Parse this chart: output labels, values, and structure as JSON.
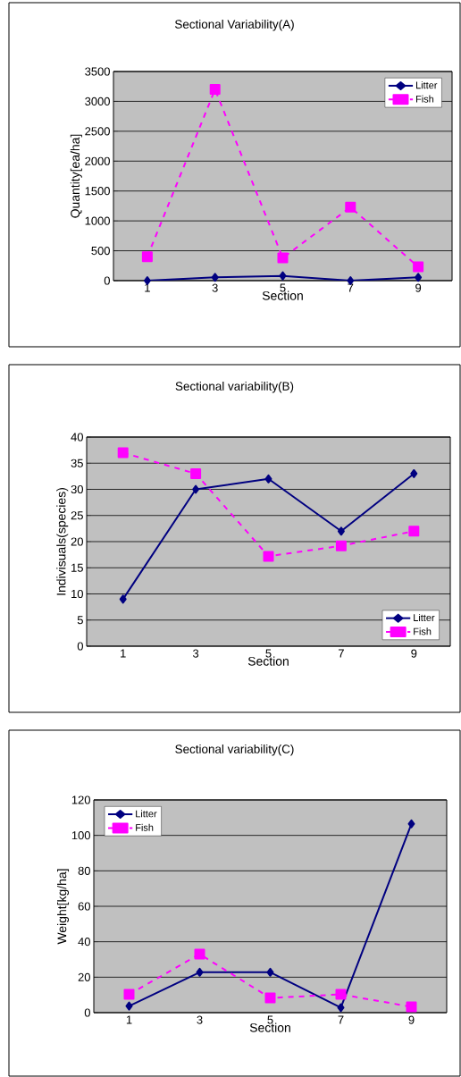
{
  "chart_data": [
    {
      "type": "line",
      "title": "Sectional Variability(A)",
      "xlabel": "Section",
      "ylabel": "Quantity[ea/ha]",
      "categories": [
        "1",
        "3",
        "5",
        "7",
        "9"
      ],
      "series": [
        {
          "name": "Litter",
          "color": "#000080",
          "values": [
            0,
            55,
            80,
            0,
            55
          ],
          "marker": "diamond",
          "line_style": "solid"
        },
        {
          "name": "Fish",
          "color": "#ff00ff",
          "values": [
            400,
            3200,
            380,
            1230,
            230
          ],
          "marker": "square",
          "line_style": "dashed"
        }
      ],
      "ylim": [
        0,
        3500
      ],
      "yticks": [
        0,
        500,
        1000,
        1500,
        2000,
        2500,
        3000,
        3500
      ],
      "grid": "y",
      "legend": "top right"
    },
    {
      "type": "line",
      "title": "Sectional variability(B)",
      "xlabel": "Section",
      "ylabel": "Indivisuals(species)",
      "categories": [
        "1",
        "3",
        "5",
        "7",
        "9"
      ],
      "series": [
        {
          "name": "Litter",
          "color": "#000080",
          "values": [
            9,
            30,
            32,
            22,
            33
          ],
          "marker": "diamond",
          "line_style": "solid"
        },
        {
          "name": "Fish",
          "color": "#ff00ff",
          "values": [
            37,
            33,
            17.2,
            19.2,
            22
          ],
          "marker": "square",
          "line_style": "dashed"
        }
      ],
      "ylim": [
        0,
        40
      ],
      "yticks": [
        0,
        5,
        10,
        15,
        20,
        25,
        30,
        35,
        40
      ],
      "grid": "y",
      "legend": "bottom right"
    },
    {
      "type": "line",
      "title": "Sectional variability(C)",
      "xlabel": "Section",
      "ylabel": "Weight[kg/ha]",
      "categories": [
        "1",
        "3",
        "5",
        "7",
        "9"
      ],
      "series": [
        {
          "name": "Litter",
          "color": "#000080",
          "values": [
            3.7,
            22.8,
            22.8,
            2.8,
            106.5
          ],
          "marker": "diamond",
          "line_style": "solid"
        },
        {
          "name": "Fish",
          "color": "#ff00ff",
          "values": [
            10.3,
            33,
            8.3,
            10.3,
            3.3
          ],
          "marker": "square",
          "line_style": "dashed"
        }
      ],
      "ylim": [
        0,
        120
      ],
      "yticks": [
        0,
        20,
        40,
        60,
        80,
        100,
        120
      ],
      "grid": "y",
      "legend": "top left"
    }
  ]
}
